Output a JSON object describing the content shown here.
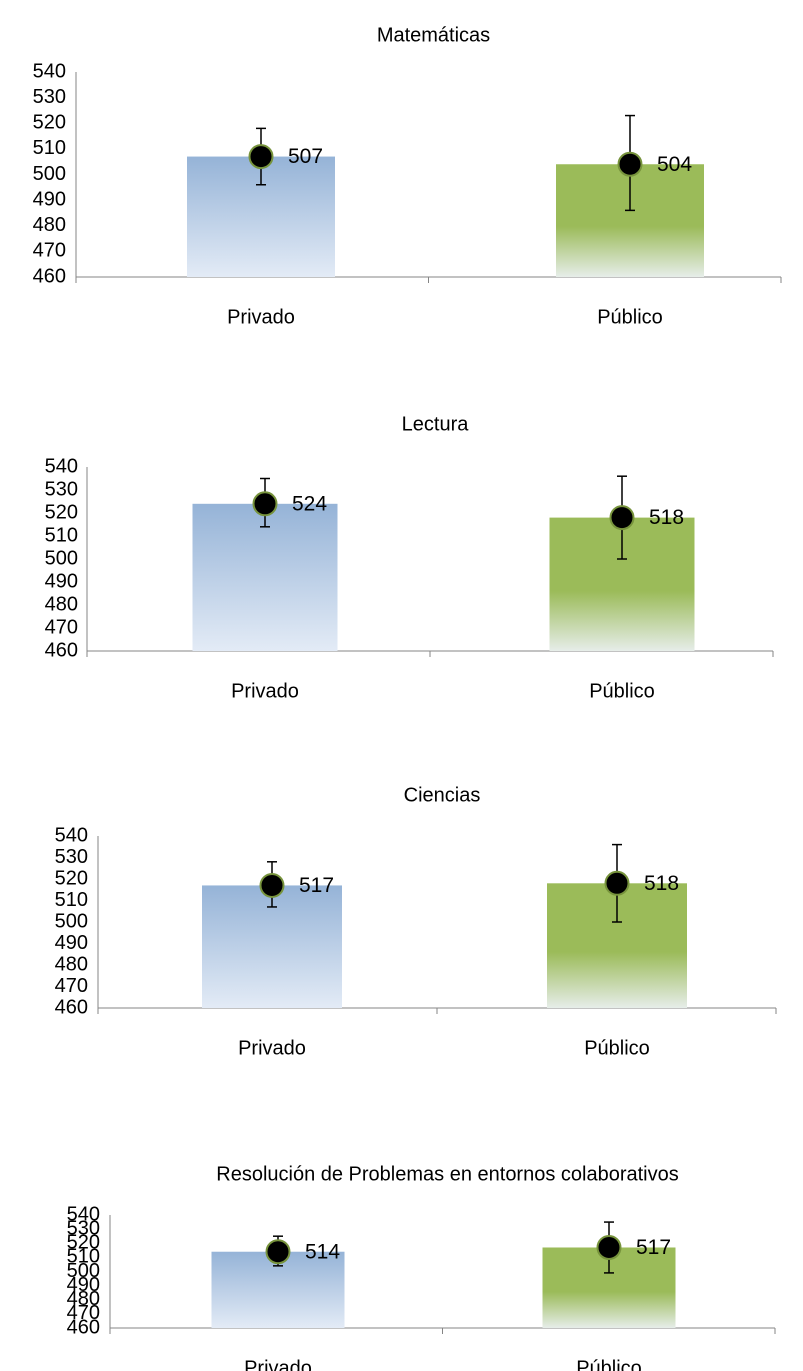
{
  "chart_data": [
    {
      "type": "bar",
      "title": "Matemáticas",
      "categories": [
        "Privado",
        "Público"
      ],
      "values": [
        507,
        504
      ],
      "error_low": [
        496,
        486
      ],
      "error_high": [
        518,
        523
      ],
      "data_labels": [
        "507",
        "504"
      ],
      "bar_colors": [
        "#95b3d7",
        "#9bbb59"
      ],
      "ylim": [
        460,
        540
      ],
      "yticks": [
        "460",
        "470",
        "480",
        "490",
        "500",
        "510",
        "520",
        "530",
        "540"
      ]
    },
    {
      "type": "bar",
      "title": "Lectura",
      "categories": [
        "Privado",
        "Público"
      ],
      "values": [
        524,
        518
      ],
      "error_low": [
        514,
        500
      ],
      "error_high": [
        535,
        536
      ],
      "data_labels": [
        "524",
        "518"
      ],
      "bar_colors": [
        "#95b3d7",
        "#9bbb59"
      ],
      "ylim": [
        460,
        540
      ],
      "yticks": [
        "460",
        "470",
        "480",
        "490",
        "500",
        "510",
        "520",
        "530",
        "540"
      ]
    },
    {
      "type": "bar",
      "title": "Ciencias",
      "categories": [
        "Privado",
        "Público"
      ],
      "values": [
        517,
        518
      ],
      "error_low": [
        507,
        500
      ],
      "error_high": [
        528,
        536
      ],
      "data_labels": [
        "517",
        "518"
      ],
      "bar_colors": [
        "#95b3d7",
        "#9bbb59"
      ],
      "ylim": [
        460,
        540
      ],
      "yticks": [
        "460",
        "470",
        "480",
        "490",
        "500",
        "510",
        "520",
        "530",
        "540"
      ]
    },
    {
      "type": "bar",
      "title": "Resolución de Problemas en entornos colaborativos",
      "categories": [
        "Privado",
        "Público"
      ],
      "values": [
        514,
        517
      ],
      "error_low": [
        504,
        499
      ],
      "error_high": [
        525,
        535
      ],
      "data_labels": [
        "514",
        "517"
      ],
      "bar_colors": [
        "#95b3d7",
        "#9bbb59"
      ],
      "ylim": [
        460,
        540
      ],
      "yticks": [
        "460",
        "470",
        "480",
        "490",
        "500",
        "510",
        "520",
        "530",
        "540"
      ]
    }
  ]
}
